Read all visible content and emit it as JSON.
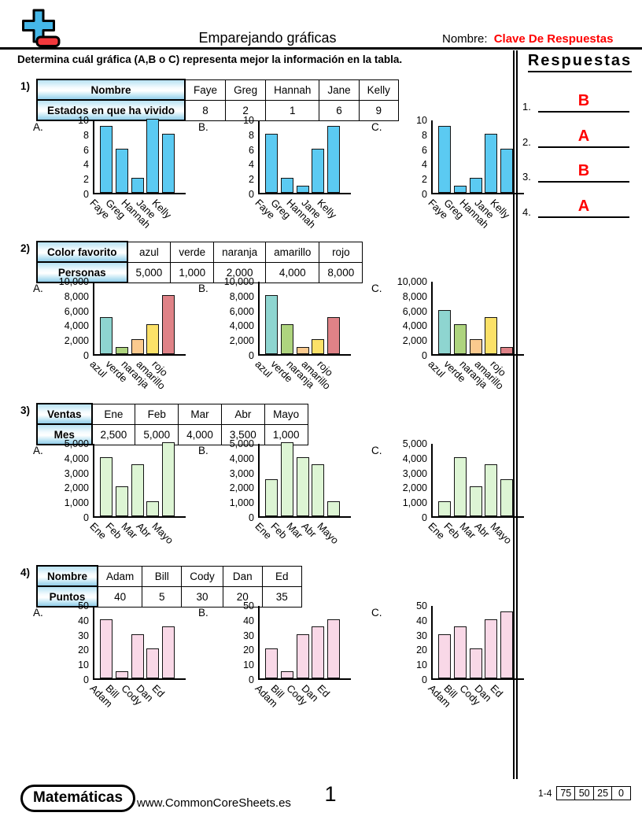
{
  "header": {
    "title": "Emparejando gráficas",
    "name_label": "Nombre:",
    "name_value": "Clave De Respuestas"
  },
  "instruction": "Determina cuál gráfica (A,B o C) representa mejor la información en la tabla.",
  "answers": {
    "heading": "Respuestas",
    "items": [
      {
        "num": "1.",
        "value": "B"
      },
      {
        "num": "2.",
        "value": "A"
      },
      {
        "num": "3.",
        "value": "B"
      },
      {
        "num": "4.",
        "value": "A"
      }
    ]
  },
  "problems": [
    {
      "number": "1)",
      "table": {
        "row1_label": "Nombre",
        "row2_label": "Estados en que ha vivido",
        "columns": [
          "Faye",
          "Greg",
          "Hannah",
          "Jane",
          "Kelly"
        ],
        "values": [
          "8",
          "2",
          "1",
          "6",
          "9"
        ]
      }
    },
    {
      "number": "2)",
      "table": {
        "row1_label": "Color favorito",
        "row2_label": "Personas",
        "columns": [
          "azul",
          "verde",
          "naranja",
          "amarillo",
          "rojo"
        ],
        "values": [
          "5,000",
          "1,000",
          "2,000",
          "4,000",
          "8,000"
        ]
      }
    },
    {
      "number": "3)",
      "table": {
        "row1_label": "Ventas",
        "row2_label": "Mes",
        "columns": [
          "Ene",
          "Feb",
          "Mar",
          "Abr",
          "Mayo"
        ],
        "values": [
          "2,500",
          "5,000",
          "4,000",
          "3,500",
          "1,000"
        ]
      }
    },
    {
      "number": "4)",
      "table": {
        "row1_label": "Nombre",
        "row2_label": "Puntos",
        "columns": [
          "Adam",
          "Bill",
          "Cody",
          "Dan",
          "Ed"
        ],
        "values": [
          "40",
          "5",
          "30",
          "20",
          "35"
        ]
      }
    }
  ],
  "chart_data": [
    {
      "type": "bar",
      "problem": 1,
      "label": "A.",
      "categories": [
        "Faye",
        "Greg",
        "Hannah",
        "Jane",
        "Kelly"
      ],
      "values": [
        9,
        6,
        2,
        10,
        8
      ],
      "ylim": [
        0,
        10
      ],
      "ytick_values": [
        0,
        2,
        4,
        6,
        8,
        10
      ],
      "ytick_labels": [
        "0",
        "2",
        "4",
        "6",
        "8",
        "10"
      ],
      "bar_color": "#5bcaf2",
      "title": "",
      "xlabel": "",
      "ylabel": "",
      "grid": false,
      "legend": "none"
    },
    {
      "type": "bar",
      "problem": 1,
      "label": "B.",
      "categories": [
        "Faye",
        "Greg",
        "Hannah",
        "Jane",
        "Kelly"
      ],
      "values": [
        8,
        2,
        1,
        6,
        9
      ],
      "ylim": [
        0,
        10
      ],
      "ytick_values": [
        0,
        2,
        4,
        6,
        8,
        10
      ],
      "ytick_labels": [
        "0",
        "2",
        "4",
        "6",
        "8",
        "10"
      ],
      "bar_color": "#5bcaf2",
      "title": "",
      "xlabel": "",
      "ylabel": "",
      "grid": false,
      "legend": "none"
    },
    {
      "type": "bar",
      "problem": 1,
      "label": "C.",
      "categories": [
        "Faye",
        "Greg",
        "Hannah",
        "Jane",
        "Kelly"
      ],
      "values": [
        9,
        1,
        2,
        8,
        6
      ],
      "ylim": [
        0,
        10
      ],
      "ytick_values": [
        0,
        2,
        4,
        6,
        8,
        10
      ],
      "ytick_labels": [
        "0",
        "2",
        "4",
        "6",
        "8",
        "10"
      ],
      "bar_color": "#5bcaf2",
      "title": "",
      "xlabel": "",
      "ylabel": "",
      "grid": false,
      "legend": "none"
    },
    {
      "type": "bar",
      "problem": 2,
      "label": "A.",
      "categories": [
        "azul",
        "verde",
        "naranja",
        "amarillo",
        "rojo"
      ],
      "values": [
        5000,
        1000,
        2000,
        4000,
        8000
      ],
      "ylim": [
        0,
        10000
      ],
      "ytick_values": [
        0,
        2000,
        4000,
        6000,
        8000,
        10000
      ],
      "ytick_labels": [
        "0",
        "2,000",
        "4,000",
        "6,000",
        "8,000",
        "10,000"
      ],
      "bar_colors": [
        "#8ed5d0",
        "#aed47e",
        "#fbca8e",
        "#fbe168",
        "#df8287"
      ],
      "title": "",
      "xlabel": "",
      "ylabel": "",
      "grid": false,
      "legend": "none"
    },
    {
      "type": "bar",
      "problem": 2,
      "label": "B.",
      "categories": [
        "azul",
        "verde",
        "naranja",
        "amarillo",
        "rojo"
      ],
      "values": [
        8000,
        4000,
        1000,
        2000,
        5000
      ],
      "ylim": [
        0,
        10000
      ],
      "ytick_values": [
        0,
        2000,
        4000,
        6000,
        8000,
        10000
      ],
      "ytick_labels": [
        "0",
        "2,000",
        "4,000",
        "6,000",
        "8,000",
        "10,000"
      ],
      "bar_colors": [
        "#8ed5d0",
        "#aed47e",
        "#fbca8e",
        "#fbe168",
        "#df8287"
      ],
      "title": "",
      "xlabel": "",
      "ylabel": "",
      "grid": false,
      "legend": "none"
    },
    {
      "type": "bar",
      "problem": 2,
      "label": "C.",
      "categories": [
        "azul",
        "verde",
        "naranja",
        "amarillo",
        "rojo"
      ],
      "values": [
        6000,
        4000,
        2000,
        5000,
        1000
      ],
      "ylim": [
        0,
        10000
      ],
      "ytick_values": [
        0,
        2000,
        4000,
        6000,
        8000,
        10000
      ],
      "ytick_labels": [
        "0",
        "2,000",
        "4,000",
        "6,000",
        "8,000",
        "10,000"
      ],
      "bar_colors": [
        "#8ed5d0",
        "#aed47e",
        "#fbca8e",
        "#fbe168",
        "#df8287"
      ],
      "title": "",
      "xlabel": "",
      "ylabel": "",
      "grid": false,
      "legend": "none"
    },
    {
      "type": "bar",
      "problem": 3,
      "label": "A.",
      "categories": [
        "Ene",
        "Feb",
        "Mar",
        "Abr",
        "Mayo"
      ],
      "values": [
        4000,
        2000,
        3500,
        1000,
        5000
      ],
      "ylim": [
        0,
        5000
      ],
      "ytick_values": [
        0,
        1000,
        2000,
        3000,
        4000,
        5000
      ],
      "ytick_labels": [
        "0",
        "1,000",
        "2,000",
        "3,000",
        "4,000",
        "5,000"
      ],
      "bar_color": "#ddf5d4",
      "title": "",
      "xlabel": "",
      "ylabel": "",
      "grid": false,
      "legend": "none"
    },
    {
      "type": "bar",
      "problem": 3,
      "label": "B.",
      "categories": [
        "Ene",
        "Feb",
        "Mar",
        "Abr",
        "Mayo"
      ],
      "values": [
        2500,
        5000,
        4000,
        3500,
        1000
      ],
      "ylim": [
        0,
        5000
      ],
      "ytick_values": [
        0,
        1000,
        2000,
        3000,
        4000,
        5000
      ],
      "ytick_labels": [
        "0",
        "1,000",
        "2,000",
        "3,000",
        "4,000",
        "5,000"
      ],
      "bar_color": "#ddf5d4",
      "title": "",
      "xlabel": "",
      "ylabel": "",
      "grid": false,
      "legend": "none"
    },
    {
      "type": "bar",
      "problem": 3,
      "label": "C.",
      "categories": [
        "Ene",
        "Feb",
        "Mar",
        "Abr",
        "Mayo"
      ],
      "values": [
        1000,
        4000,
        2000,
        3500,
        2500
      ],
      "ylim": [
        0,
        5000
      ],
      "ytick_values": [
        0,
        1000,
        2000,
        3000,
        4000,
        5000
      ],
      "ytick_labels": [
        "0",
        "1,000",
        "2,000",
        "3,000",
        "4,000",
        "5,000"
      ],
      "bar_color": "#ddf5d4",
      "title": "",
      "xlabel": "",
      "ylabel": "",
      "grid": false,
      "legend": "none"
    },
    {
      "type": "bar",
      "problem": 4,
      "label": "A.",
      "categories": [
        "Adam",
        "Bill",
        "Cody",
        "Dan",
        "Ed"
      ],
      "values": [
        40,
        5,
        30,
        20,
        35
      ],
      "ylim": [
        0,
        50
      ],
      "ytick_values": [
        0,
        10,
        20,
        30,
        40,
        50
      ],
      "ytick_labels": [
        "0",
        "10",
        "20",
        "30",
        "40",
        "50"
      ],
      "bar_color": "#f9d8e7",
      "title": "",
      "xlabel": "",
      "ylabel": "",
      "grid": false,
      "legend": "none"
    },
    {
      "type": "bar",
      "problem": 4,
      "label": "B.",
      "categories": [
        "Adam",
        "Bill",
        "Cody",
        "Dan",
        "Ed"
      ],
      "values": [
        20,
        5,
        30,
        35,
        40
      ],
      "ylim": [
        0,
        50
      ],
      "ytick_values": [
        0,
        10,
        20,
        30,
        40,
        50
      ],
      "ytick_labels": [
        "0",
        "10",
        "20",
        "30",
        "40",
        "50"
      ],
      "bar_color": "#f9d8e7",
      "title": "",
      "xlabel": "",
      "ylabel": "",
      "grid": false,
      "legend": "none"
    },
    {
      "type": "bar",
      "problem": 4,
      "label": "C.",
      "categories": [
        "Adam",
        "Bill",
        "Cody",
        "Dan",
        "Ed"
      ],
      "values": [
        30,
        35,
        20,
        40,
        45
      ],
      "ylim": [
        0,
        50
      ],
      "ytick_values": [
        0,
        10,
        20,
        30,
        40,
        50
      ],
      "ytick_labels": [
        "0",
        "10",
        "20",
        "30",
        "40",
        "50"
      ],
      "bar_color": "#f9d8e7",
      "title": "",
      "xlabel": "",
      "ylabel": "",
      "grid": false,
      "legend": "none"
    }
  ],
  "footer": {
    "badge": "Matemáticas",
    "site": "www.CommonCoreSheets.es",
    "page_number": "1",
    "score_range": "1-4",
    "score_cells": [
      "75",
      "50",
      "25",
      "0"
    ]
  }
}
